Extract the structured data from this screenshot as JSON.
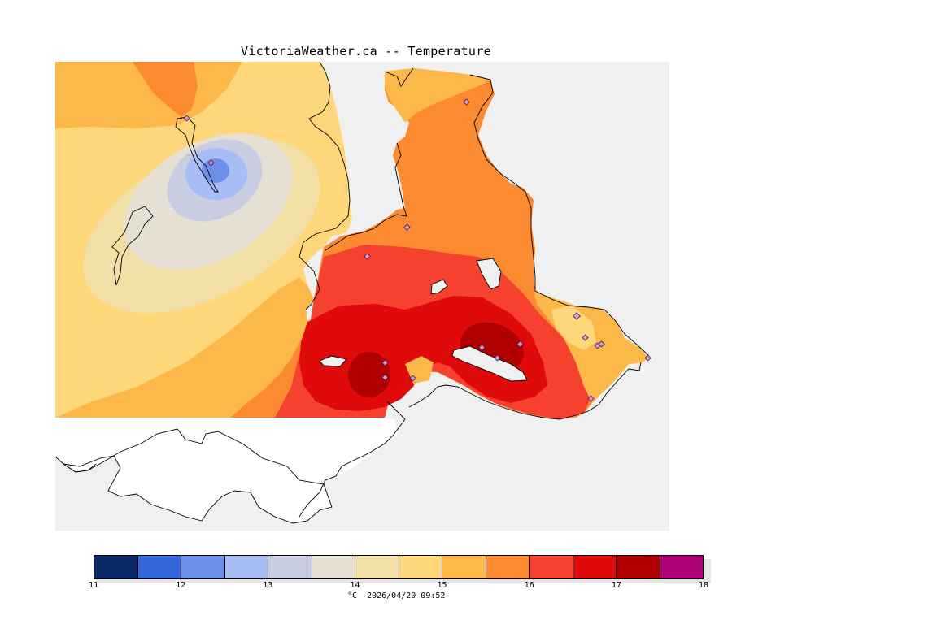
{
  "title": "VictoriaWeather.ca -- Temperature",
  "colorbar": {
    "min": 11,
    "max": 18,
    "tick_labels": [
      "11",
      "12",
      "13",
      "14",
      "15",
      "16",
      "17",
      "18"
    ],
    "colors": [
      "#0a2866",
      "#3366d9",
      "#6c8fe8",
      "#a8bdf4",
      "#c9cde2",
      "#e6dfd3",
      "#f1dfa6",
      "#fdd77a",
      "#fdb84a",
      "#fb8a30",
      "#f5412e",
      "#e10a0a",
      "#b00000",
      "#ad0077"
    ]
  },
  "units_timestamp": "°C  2026/04/20 09:52",
  "map": {
    "background_color": "#f0f0f0",
    "coastline_color": "#000000",
    "station_marker": "diamond-icon",
    "temperature_levels": [
      {
        "label": "14-14.5",
        "color": "#f1dfa6"
      },
      {
        "label": "15-15.5",
        "color": "#fdb84a"
      },
      {
        "label": "15.5-16",
        "color": "#fb8a30"
      },
      {
        "label": "16-16.5",
        "color": "#f5412e"
      },
      {
        "label": "16.5-17",
        "color": "#e10a0a"
      },
      {
        "label": "17-17.5",
        "color": "#b00000"
      }
    ]
  }
}
